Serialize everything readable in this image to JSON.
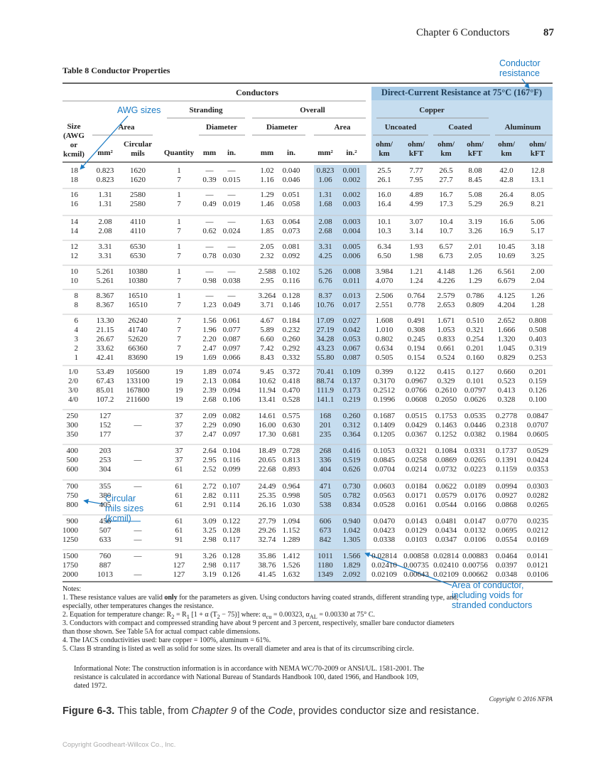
{
  "header": {
    "chapter": "Chapter 6  Conductors",
    "page": "87"
  },
  "table": {
    "title": "Table 8  Conductor Properties",
    "column_groups": {
      "conductors": "Conductors",
      "dc_resistance": "Direct-Current Resistance at 75°C (167°F)",
      "stranding": "Stranding",
      "overall": "Overall",
      "copper": "Copper",
      "area": "Area",
      "stranding_diameter": "Diameter",
      "overall_diameter": "Diameter",
      "overall_area": "Area",
      "uncoated": "Uncoated",
      "coated": "Coated",
      "aluminum": "Aluminum"
    },
    "columns": [
      "Size (AWG or kcmil)",
      "mm²",
      "Circular mils",
      "Quantity",
      "mm",
      "in.",
      "mm",
      "in.",
      "mm²",
      "in.²",
      "ohm/ km",
      "ohm/ kFT",
      "ohm/ km",
      "ohm/ kFT",
      "ohm/ km",
      "ohm/ kFT"
    ],
    "row_groups": [
      [
        [
          "18",
          "0.823",
          "1620",
          "1",
          "—",
          "—",
          "1.02",
          "0.040",
          "0.823",
          "0.001",
          "25.5",
          "7.77",
          "26.5",
          "8.08",
          "42.0",
          "12.8"
        ],
        [
          "18",
          "0.823",
          "1620",
          "7",
          "0.39",
          "0.015",
          "1.16",
          "0.046",
          "1.06",
          "0.002",
          "26.1",
          "7.95",
          "27.7",
          "8.45",
          "42.8",
          "13.1"
        ]
      ],
      [
        [
          "16",
          "1.31",
          "2580",
          "1",
          "—",
          "—",
          "1.29",
          "0.051",
          "1.31",
          "0.002",
          "16.0",
          "4.89",
          "16.7",
          "5.08",
          "26.4",
          "8.05"
        ],
        [
          "16",
          "1.31",
          "2580",
          "7",
          "0.49",
          "0.019",
          "1.46",
          "0.058",
          "1.68",
          "0.003",
          "16.4",
          "4.99",
          "17.3",
          "5.29",
          "26.9",
          "8.21"
        ]
      ],
      [
        [
          "14",
          "2.08",
          "4110",
          "1",
          "—",
          "—",
          "1.63",
          "0.064",
          "2.08",
          "0.003",
          "10.1",
          "3.07",
          "10.4",
          "3.19",
          "16.6",
          "5.06"
        ],
        [
          "14",
          "2.08",
          "4110",
          "7",
          "0.62",
          "0.024",
          "1.85",
          "0.073",
          "2.68",
          "0.004",
          "10.3",
          "3.14",
          "10.7",
          "3.26",
          "16.9",
          "5.17"
        ]
      ],
      [
        [
          "12",
          "3.31",
          "6530",
          "1",
          "—",
          "—",
          "2.05",
          "0.081",
          "3.31",
          "0.005",
          "6.34",
          "1.93",
          "6.57",
          "2.01",
          "10.45",
          "3.18"
        ],
        [
          "12",
          "3.31",
          "6530",
          "7",
          "0.78",
          "0.030",
          "2.32",
          "0.092",
          "4.25",
          "0.006",
          "6.50",
          "1.98",
          "6.73",
          "2.05",
          "10.69",
          "3.25"
        ]
      ],
      [
        [
          "10",
          "5.261",
          "10380",
          "1",
          "—",
          "—",
          "2.588",
          "0.102",
          "5.26",
          "0.008",
          "3.984",
          "1.21",
          "4.148",
          "1.26",
          "6.561",
          "2.00"
        ],
        [
          "10",
          "5.261",
          "10380",
          "7",
          "0.98",
          "0.038",
          "2.95",
          "0.116",
          "6.76",
          "0.011",
          "4.070",
          "1.24",
          "4.226",
          "1.29",
          "6.679",
          "2.04"
        ]
      ],
      [
        [
          "8",
          "8.367",
          "16510",
          "1",
          "—",
          "—",
          "3.264",
          "0.128",
          "8.37",
          "0.013",
          "2.506",
          "0.764",
          "2.579",
          "0.786",
          "4.125",
          "1.26"
        ],
        [
          "8",
          "8.367",
          "16510",
          "7",
          "1.23",
          "0.049",
          "3.71",
          "0.146",
          "10.76",
          "0.017",
          "2.551",
          "0.778",
          "2.653",
          "0.809",
          "4.204",
          "1.28"
        ]
      ],
      [
        [
          "6",
          "13.30",
          "26240",
          "7",
          "1.56",
          "0.061",
          "4.67",
          "0.184",
          "17.09",
          "0.027",
          "1.608",
          "0.491",
          "1.671",
          "0.510",
          "2.652",
          "0.808"
        ],
        [
          "4",
          "21.15",
          "41740",
          "7",
          "1.96",
          "0.077",
          "5.89",
          "0.232",
          "27.19",
          "0.042",
          "1.010",
          "0.308",
          "1.053",
          "0.321",
          "1.666",
          "0.508"
        ],
        [
          "3",
          "26.67",
          "52620",
          "7",
          "2.20",
          "0.087",
          "6.60",
          "0.260",
          "34.28",
          "0.053",
          "0.802",
          "0.245",
          "0.833",
          "0.254",
          "1.320",
          "0.403"
        ],
        [
          "2",
          "33.62",
          "66360",
          "7",
          "2.47",
          "0.097",
          "7.42",
          "0.292",
          "43.23",
          "0.067",
          "0.634",
          "0.194",
          "0.661",
          "0.201",
          "1.045",
          "0.319"
        ],
        [
          "1",
          "42.41",
          "83690",
          "19",
          "1.69",
          "0.066",
          "8.43",
          "0.332",
          "55.80",
          "0.087",
          "0.505",
          "0.154",
          "0.524",
          "0.160",
          "0.829",
          "0.253"
        ]
      ],
      [
        [
          "1/0",
          "53.49",
          "105600",
          "19",
          "1.89",
          "0.074",
          "9.45",
          "0.372",
          "70.41",
          "0.109",
          "0.399",
          "0.122",
          "0.415",
          "0.127",
          "0.660",
          "0.201"
        ],
        [
          "2/0",
          "67.43",
          "133100",
          "19",
          "2.13",
          "0.084",
          "10.62",
          "0.418",
          "88.74",
          "0.137",
          "0.3170",
          "0.0967",
          "0.329",
          "0.101",
          "0.523",
          "0.159"
        ],
        [
          "3/0",
          "85.01",
          "167800",
          "19",
          "2.39",
          "0.094",
          "11.94",
          "0.470",
          "111.9",
          "0.173",
          "0.2512",
          "0.0766",
          "0.2610",
          "0.0797",
          "0.413",
          "0.126"
        ],
        [
          "4/0",
          "107.2",
          "211600",
          "19",
          "2.68",
          "0.106",
          "13.41",
          "0.528",
          "141.1",
          "0.219",
          "0.1996",
          "0.0608",
          "0.2050",
          "0.0626",
          "0.328",
          "0.100"
        ]
      ],
      [
        [
          "250",
          "127",
          null,
          "37",
          "2.09",
          "0.082",
          "14.61",
          "0.575",
          "168",
          "0.260",
          "0.1687",
          "0.0515",
          "0.1753",
          "0.0535",
          "0.2778",
          "0.0847"
        ],
        [
          "300",
          "152",
          "—",
          "37",
          "2.29",
          "0.090",
          "16.00",
          "0.630",
          "201",
          "0.312",
          "0.1409",
          "0.0429",
          "0.1463",
          "0.0446",
          "0.2318",
          "0.0707"
        ],
        [
          "350",
          "177",
          null,
          "37",
          "2.47",
          "0.097",
          "17.30",
          "0.681",
          "235",
          "0.364",
          "0.1205",
          "0.0367",
          "0.1252",
          "0.0382",
          "0.1984",
          "0.0605"
        ]
      ],
      [
        [
          "400",
          "203",
          null,
          "37",
          "2.64",
          "0.104",
          "18.49",
          "0.728",
          "268",
          "0.416",
          "0.1053",
          "0.0321",
          "0.1084",
          "0.0331",
          "0.1737",
          "0.0529"
        ],
        [
          "500",
          "253",
          "—",
          "37",
          "2.95",
          "0.116",
          "20.65",
          "0.813",
          "336",
          "0.519",
          "0.0845",
          "0.0258",
          "0.0869",
          "0.0265",
          "0.1391",
          "0.0424"
        ],
        [
          "600",
          "304",
          null,
          "61",
          "2.52",
          "0.099",
          "22.68",
          "0.893",
          "404",
          "0.626",
          "0.0704",
          "0.0214",
          "0.0732",
          "0.0223",
          "0.1159",
          "0.0353"
        ]
      ],
      [
        [
          "700",
          "355",
          "—",
          "61",
          "2.72",
          "0.107",
          "24.49",
          "0.964",
          "471",
          "0.730",
          "0.0603",
          "0.0184",
          "0.0622",
          "0.0189",
          "0.0994",
          "0.0303"
        ],
        [
          "750",
          "380",
          null,
          "61",
          "2.82",
          "0.111",
          "25.35",
          "0.998",
          "505",
          "0.782",
          "0.0563",
          "0.0171",
          "0.0579",
          "0.0176",
          "0.0927",
          "0.0282"
        ],
        [
          "800",
          "405",
          null,
          "61",
          "2.91",
          "0.114",
          "26.16",
          "1.030",
          "538",
          "0.834",
          "0.0528",
          "0.0161",
          "0.0544",
          "0.0166",
          "0.0868",
          "0.0265"
        ]
      ],
      [
        [
          "900",
          "456",
          null,
          "61",
          "3.09",
          "0.122",
          "27.79",
          "1.094",
          "606",
          "0.940",
          "0.0470",
          "0.0143",
          "0.0481",
          "0.0147",
          "0.0770",
          "0.0235"
        ],
        [
          "1000",
          "507",
          "—",
          "61",
          "3.25",
          "0.128",
          "29.26",
          "1.152",
          "673",
          "1.042",
          "0.0423",
          "0.0129",
          "0.0434",
          "0.0132",
          "0.0695",
          "0.0212"
        ],
        [
          "1250",
          "633",
          "—",
          "91",
          "2.98",
          "0.117",
          "32.74",
          "1.289",
          "842",
          "1.305",
          "0.0338",
          "0.0103",
          "0.0347",
          "0.0106",
          "0.0554",
          "0.0169"
        ]
      ],
      [
        [
          "1500",
          "760",
          "—",
          "91",
          "3.26",
          "0.128",
          "35.86",
          "1.412",
          "1011",
          "1.566",
          "0.02814",
          "0.00858",
          "0.02814",
          "0.00883",
          "0.0464",
          "0.0141"
        ],
        [
          "1750",
          "887",
          null,
          "127",
          "2.98",
          "0.117",
          "38.76",
          "1.526",
          "1180",
          "1.829",
          "0.02410",
          "0.00735",
          "0.02410",
          "0.00756",
          "0.0397",
          "0.0121"
        ],
        [
          "2000",
          "1013",
          "—",
          "127",
          "3.19",
          "0.126",
          "41.45",
          "1.632",
          "1349",
          "2.092",
          "0.02109",
          "0.00643",
          "0.02109",
          "0.00662",
          "0.0348",
          "0.0106"
        ]
      ]
    ]
  },
  "notes": {
    "heading": "Notes:",
    "items": [
      [
        "1. These resistance values are valid ",
        "only",
        " for the parameters as given. Using conductors having coated strands, different stranding type, and, especially, other temperatures changes the resistance."
      ],
      [
        "2. Equation for temperature change: R",
        "2",
        " = R",
        "1",
        " [1 + α (T",
        "2",
        " − 75)] where: α",
        "cu",
        " = 0.00323, α",
        "AL",
        " = 0.00330 at 75° C."
      ],
      [
        "3. Conductors with compact and compressed stranding have about 9 percent and 3 percent, respectively, smaller bare conductor diameters than those shown. See Table 5A for actual compact cable dimensions."
      ],
      [
        "4. The IACS conductivities used: bare copper = 100%, aluminum = 61%."
      ],
      [
        "5. Class B stranding is listed as well as solid for some sizes. Its overall diameter and area is that of its circumscribing circle."
      ]
    ],
    "informational": "Informational Note: The construction information is in accordance with NEMA WC/70-2009 or ANSI/UL. 1581-2001. The resistance is calculated in accordance with National Bureau of Standards Handbook 100, dated 1966, and Handbook 109, dated 1972."
  },
  "annotations": {
    "conductor_resistance": "Conductor resistance",
    "awg_sizes": "AWG sizes",
    "circular_mils": "Circular mils sizes (kcmil)",
    "area": "Area of conductor, including voids for stranded conductors"
  },
  "copyright": "Copyright © 2016 NFPA",
  "caption": {
    "label": "Figure 6-3.",
    "parts": [
      "This table, from ",
      "Chapter 9",
      " of the ",
      "Code",
      ", provides conductor size and resistance."
    ]
  },
  "footer": "Copyright Goodheart-Willcox Co., Inc."
}
